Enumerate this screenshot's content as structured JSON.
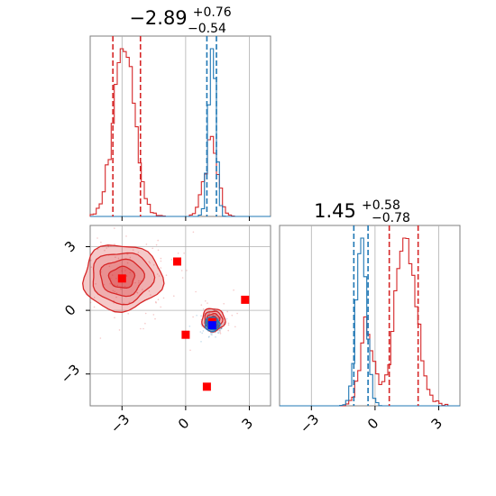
{
  "chart_data": {
    "type": "corner",
    "parameters": [
      "",
      ""
    ],
    "axis_range": [
      -4.5,
      4.0
    ],
    "ticks": [
      -3,
      0,
      3
    ],
    "tick_labels": [
      "−3",
      "0",
      "3"
    ],
    "grid": true,
    "series": [
      {
        "color": "#d62728",
        "param1": {
          "median": -2.89,
          "lower_quantile": -3.43,
          "upper_quantile": -2.13,
          "histogram_peak": -2.9,
          "secondary_peak": 1.2
        },
        "param2": {
          "median": 1.45,
          "lower_quantile": 0.67,
          "upper_quantile": 2.03,
          "histogram_peak": 1.45,
          "secondary_peak": -0.4
        },
        "modes": [
          {
            "x": -3.0,
            "y": 1.55,
            "sx": 1.2,
            "sy": 1.0,
            "weight": 0.75
          },
          {
            "x": 1.3,
            "y": -0.45,
            "sx": 0.35,
            "sy": 0.35,
            "weight": 0.25
          }
        ]
      },
      {
        "color": "#1f77b4",
        "param1": {
          "median": 1.25,
          "lower_quantile": 1.0,
          "upper_quantile": 1.45,
          "histogram_peak": 1.25
        },
        "param2": {
          "median": -0.65,
          "lower_quantile": -1.0,
          "upper_quantile": -0.33,
          "histogram_peak": -0.65
        },
        "modes": [
          {
            "x": 1.25,
            "y": -0.65,
            "sx": 0.22,
            "sy": 0.22,
            "weight": 1.0
          }
        ]
      }
    ],
    "markers": [
      {
        "x": -3.0,
        "y": 1.5,
        "color": "#ff0000",
        "shape": "square"
      },
      {
        "x": -0.4,
        "y": 2.3,
        "color": "#ff0000",
        "shape": "square"
      },
      {
        "x": 0.0,
        "y": -1.15,
        "color": "#ff0000",
        "shape": "square"
      },
      {
        "x": 2.8,
        "y": 0.5,
        "color": "#ff0000",
        "shape": "square"
      },
      {
        "x": 1.0,
        "y": -3.6,
        "color": "#ff0000",
        "shape": "square"
      },
      {
        "x": 1.25,
        "y": -0.55,
        "color": "#ff0000",
        "shape": "square"
      },
      {
        "x": 1.25,
        "y": -0.7,
        "color": "#0000ff",
        "shape": "square"
      }
    ],
    "titles": {
      "param1": {
        "value": "−2.89",
        "upper": "+0.76",
        "lower": "−0.54"
      },
      "param2": {
        "value": "1.45",
        "upper": "+0.58",
        "lower": "−0.78"
      }
    }
  }
}
